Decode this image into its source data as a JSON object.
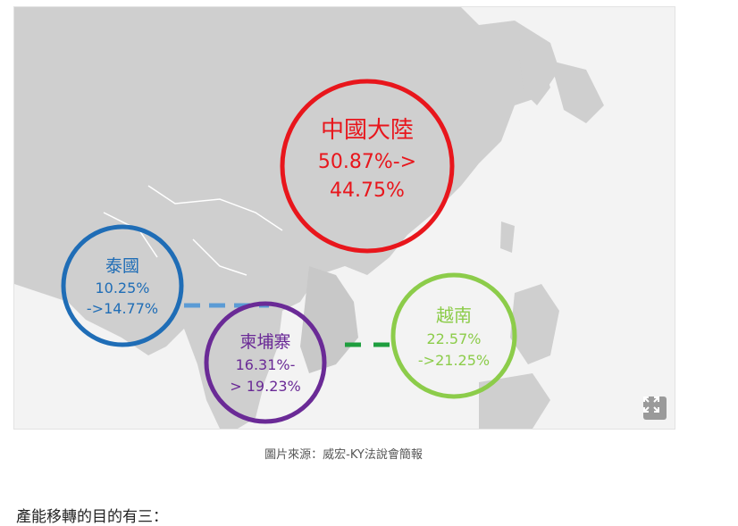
{
  "image": {
    "alt_regions": [
      {
        "id": "china",
        "name": "中國大陸",
        "line1": "50.87%->",
        "line2": "44.75%",
        "color": "#e8161c"
      },
      {
        "id": "thailand",
        "name": "泰國",
        "line1": "10.25%",
        "line2": "->14.77%",
        "color": "#1f6db6"
      },
      {
        "id": "cambodia",
        "name": "柬埔寨",
        "line1": "16.31%-",
        "line2": "> 19.23%",
        "color": "#6a2a96"
      },
      {
        "id": "vietnam",
        "name": "越南",
        "line1": "22.57%",
        "line2": "->21.25%",
        "color": "#8ccc4a"
      }
    ],
    "expand_icon": "expand-icon"
  },
  "caption": "圖片來源：威宏-KY法說會簡報",
  "body_text": "產能移轉的目的有三："
}
